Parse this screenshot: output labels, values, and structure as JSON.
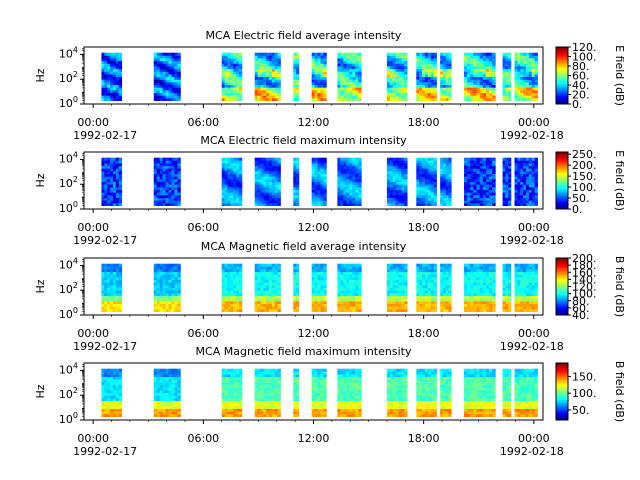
{
  "chart_data": [
    {
      "type": "heatmap",
      "title": "MCA  Electric field average intensity",
      "ylabel": "Hz",
      "colorbar": {
        "label": "E field (dB)",
        "ticks": [
          "120.",
          "100.",
          "80.",
          "60.",
          "40.",
          "20.",
          "0."
        ],
        "range": [
          0,
          120
        ]
      },
      "ylim_exponent": [
        0,
        4
      ],
      "y_ticks": [
        "10^0",
        "10^2",
        "10^4"
      ]
    },
    {
      "type": "heatmap",
      "title": "MCA  Electric field maximum intensity",
      "ylabel": "Hz",
      "colorbar": {
        "label": "E field (dB)",
        "ticks": [
          "250.",
          "200.",
          "150.",
          "100.",
          "50.",
          "0."
        ],
        "range": [
          0,
          260
        ]
      },
      "ylim_exponent": [
        0,
        4
      ],
      "y_ticks": [
        "10^0",
        "10^2",
        "10^4"
      ]
    },
    {
      "type": "heatmap",
      "title": "MCA  Magnetic field average intensity",
      "ylabel": "Hz",
      "colorbar": {
        "label": "B field (dB)",
        "ticks": [
          "200.",
          "180.",
          "160.",
          "140.",
          "120.",
          "100.",
          "80.",
          "60.",
          "40."
        ],
        "range": [
          40,
          200
        ]
      },
      "ylim_exponent": [
        0,
        4
      ],
      "y_ticks": [
        "10^0",
        "10^2",
        "10^4"
      ]
    },
    {
      "type": "heatmap",
      "title": "MCA  Magnetic field maximum intensity",
      "ylabel": "Hz",
      "colorbar": {
        "label": "B field (dB)",
        "ticks": [
          "150.",
          "100.",
          "50."
        ],
        "range": [
          20,
          190
        ]
      },
      "ylim_exponent": [
        0,
        4
      ],
      "y_ticks": [
        "10^0",
        "10^2",
        "10^4"
      ]
    }
  ],
  "x_axis": {
    "range_hours": [
      -0.5,
      24.5
    ],
    "tick_labels": [
      "00:00",
      "06:00",
      "12:00",
      "18:00",
      "00:00"
    ],
    "tick_hours": [
      0,
      6,
      12,
      18,
      24
    ],
    "date_start": "1992-02-17",
    "date_end": "1992-02-18"
  },
  "data_segments_hours": [
    [
      0.45,
      1.55
    ],
    [
      3.3,
      4.75
    ],
    [
      7.0,
      8.1
    ],
    [
      8.8,
      10.2
    ],
    [
      10.9,
      11.2
    ],
    [
      11.9,
      12.7
    ],
    [
      13.3,
      14.6
    ],
    [
      16.0,
      17.1
    ],
    [
      17.6,
      18.7
    ],
    [
      18.9,
      19.5
    ],
    [
      20.2,
      21.9
    ],
    [
      22.3,
      22.75
    ],
    [
      22.95,
      24.2
    ]
  ],
  "colors": {
    "frame": "#000000",
    "background": "#ffffff"
  }
}
